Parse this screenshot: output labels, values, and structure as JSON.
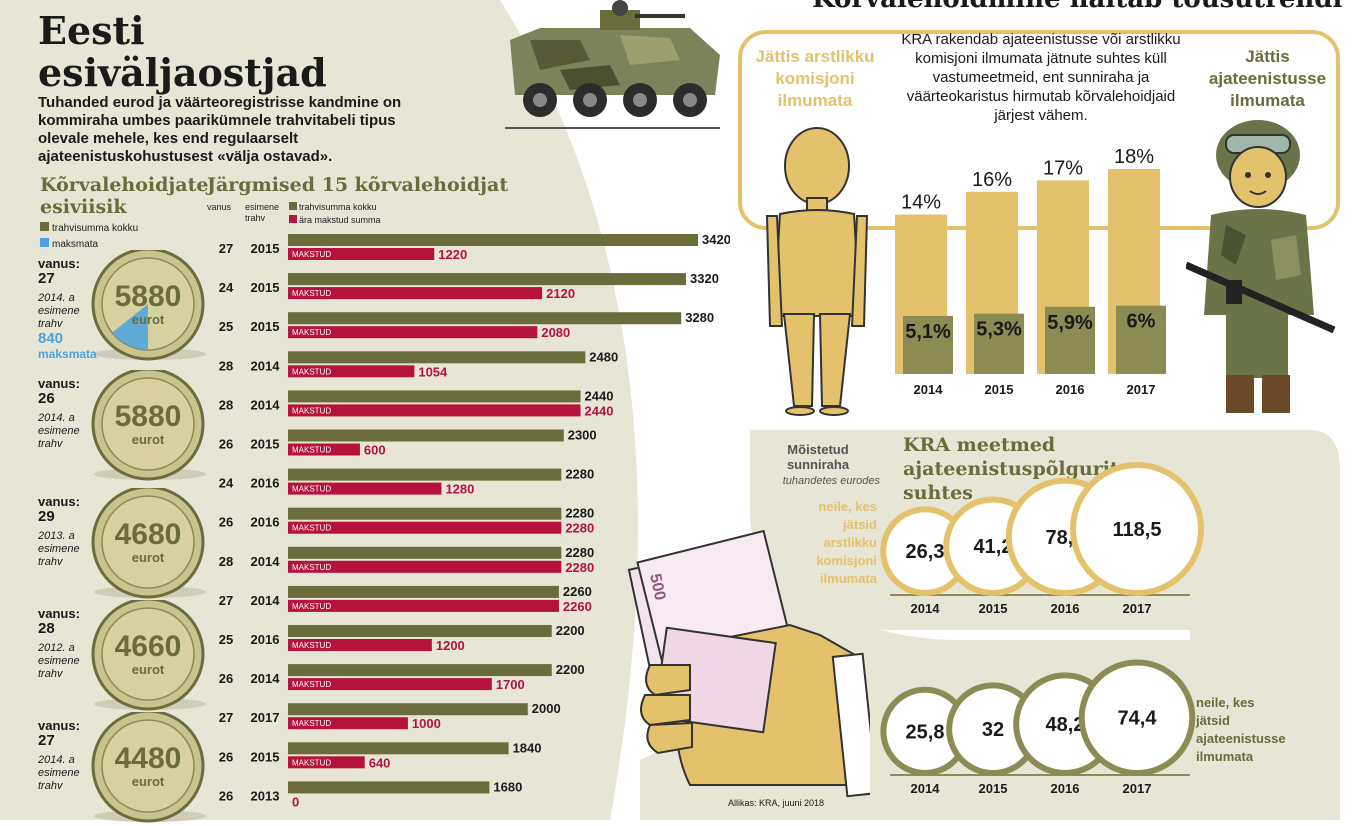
{
  "title": "Eesti esiväljaostjad",
  "subtitle": "Tuhanded eurod ja väärteoregistrisse kandmine on kommiraha umbes paarikümnele trahvitabeli tipus olevale mehele, kes end regulaarselt ajateenistuskohustusest «välja ostavad».",
  "top_section_title": "Kõrvalehoidmine näitab tõusutrendi",
  "top_section_desc": "KRA rakendab ajateenistusse või arstlikku komisjoni ilmumata jätnute suhtes küll vastumeetmeid, ent sunniraha ja väärteokaristus hirmutab kõrvalehoidjaid järjest vähem.",
  "label_jattis_arst": "Jättis arstlikku komisjoni ilmumata",
  "label_jattis_ajat": "Jättis ajateenistusse ilmumata",
  "left_header": "Kõrvalehoidjate esiviisik",
  "legend_left": {
    "total": "trahvisumma kokku",
    "unpaid": "maksmata"
  },
  "coin_unit": "eurot",
  "coins": [
    {
      "age_label": "vanus:",
      "age": "27",
      "note": "2014. a esimene trahv",
      "amount": "5880",
      "unpaid": "840",
      "unpaid_label": "maksmata",
      "unpaid_fraction": 0.143
    },
    {
      "age_label": "vanus:",
      "age": "26",
      "note": "2014. a esimene trahv",
      "amount": "5880"
    },
    {
      "age_label": "vanus:",
      "age": "29",
      "note": "2013. a esimene trahv",
      "amount": "4680"
    },
    {
      "age_label": "vanus:",
      "age": "28",
      "note": "2012. a esimene trahv",
      "amount": "4660"
    },
    {
      "age_label": "vanus:",
      "age": "27",
      "note": "2014. a esimene trahv",
      "amount": "4480"
    }
  ],
  "next15_header": "Järgmised 15 kõrvalehoidjat",
  "col_age": "vanus",
  "col_first": "esimene trahv",
  "legend_bars": {
    "total": "trahvisumma kokku",
    "paid": "ära makstud summa"
  },
  "paid_tag": "MAKSTUD",
  "source": "Allikas: KRA, juuni 2018",
  "measures_title": "KRA meetmed ajateenistuspõlgurite suhtes",
  "sunniraha_label": "Mõistetud sunniraha",
  "sunniraha_unit": "tuhandetes eurodes",
  "group1_label": "neile, kes jätsid arstlikku komisjoni ilmumata",
  "group2_label": "neile, kes jätsid ajateenistusse ilmumata",
  "colors": {
    "olive": "#6b6c3b",
    "crimson": "#b5123c",
    "gold": "#e3c26b",
    "blue": "#4aa3df",
    "beige": "#e7e5d6"
  },
  "icons": [
    "armored-vehicle-icon",
    "naked-man-icon",
    "soldier-icon",
    "money-hand-icon"
  ],
  "chart_data": [
    {
      "type": "bar",
      "title": "Järgmised 15 kõrvalehoidjat",
      "series": [
        {
          "name": "trahvisumma kokku",
          "values": [
            3420,
            3320,
            3280,
            2480,
            2440,
            2300,
            2280,
            2280,
            2280,
            2260,
            2200,
            2200,
            2000,
            1840,
            1680
          ]
        },
        {
          "name": "ära makstud summa",
          "values": [
            1220,
            2120,
            2080,
            1054,
            2440,
            600,
            1280,
            2280,
            2280,
            2260,
            1200,
            1700,
            1000,
            640,
            0
          ]
        }
      ],
      "ages": [
        "27",
        "24",
        "25",
        "28",
        "28",
        "26",
        "24",
        "26",
        "28",
        "27",
        "25",
        "26",
        "27",
        "26",
        "26"
      ],
      "first_fine": [
        "2015",
        "2015",
        "2015",
        "2014",
        "2014",
        "2015",
        "2016",
        "2016",
        "2014",
        "2014",
        "2016",
        "2014",
        "2017",
        "2015",
        "2013"
      ],
      "xlim": [
        0,
        3420
      ]
    },
    {
      "type": "bar",
      "title": "Kõrvalehoidmine näitab tõusutrendi",
      "categories": [
        "2014",
        "2015",
        "2016",
        "2017"
      ],
      "series": [
        {
          "name": "Jättis arstlikku komisjoni ilmumata",
          "values": [
            14,
            16,
            17,
            18
          ],
          "labels": [
            "14%",
            "16%",
            "17%",
            "18%"
          ]
        },
        {
          "name": "Jättis ajateenistusse ilmumata",
          "values": [
            5.1,
            5.3,
            5.9,
            6
          ],
          "labels": [
            "5,1%",
            "5,3%",
            "5,9%",
            "6%"
          ]
        }
      ],
      "ylim": [
        0,
        18
      ]
    },
    {
      "type": "bubble",
      "title": "Mõistetud sunniraha",
      "categories": [
        "2014",
        "2015",
        "2016",
        "2017"
      ],
      "series": [
        {
          "name": "neile, kes jätsid arstlikku komisjoni ilmumata",
          "values": [
            26.3,
            41.2,
            78.6,
            118.5
          ],
          "labels": [
            "26,3",
            "41,2",
            "78,6",
            "118,5"
          ]
        },
        {
          "name": "neile, kes jätsid ajateenistusse ilmumata",
          "values": [
            25.8,
            32,
            48.2,
            74.4
          ],
          "labels": [
            "25,8",
            "32",
            "48,2",
            "74,4"
          ]
        }
      ]
    }
  ]
}
